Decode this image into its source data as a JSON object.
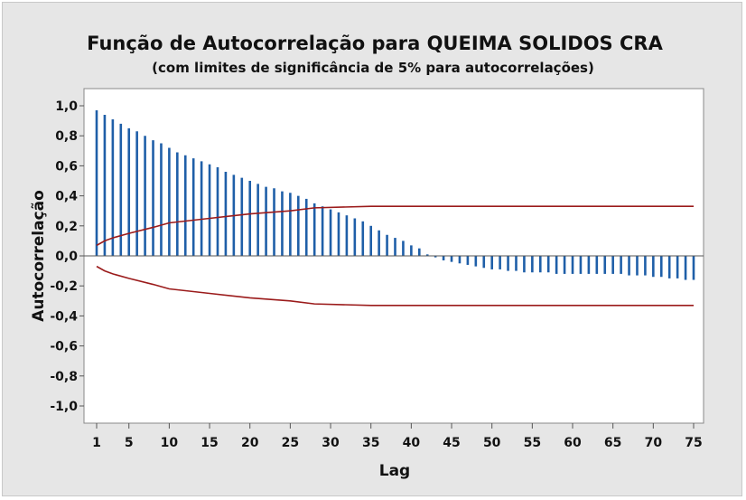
{
  "chart_data": {
    "type": "bar",
    "title": "Função de Autocorrelação para QUEIMA SOLIDOS CRA",
    "subtitle": "(com limites de significância de 5% para autocorrelações)",
    "xlabel": "Lag",
    "ylabel": "Autocorrelação",
    "xlim": [
      1,
      75
    ],
    "ylim": [
      -1.0,
      1.0
    ],
    "xticks": [
      1,
      5,
      10,
      15,
      20,
      25,
      30,
      35,
      40,
      45,
      50,
      55,
      60,
      65,
      70,
      75
    ],
    "xtick_labels": [
      "1",
      "5",
      "10",
      "15",
      "20",
      "25",
      "30",
      "35",
      "40",
      "45",
      "50",
      "55",
      "60",
      "65",
      "70",
      "75"
    ],
    "yticks": [
      1.0,
      0.8,
      0.6,
      0.4,
      0.2,
      0.0,
      -0.2,
      -0.4,
      -0.6,
      -0.8,
      -1.0
    ],
    "ytick_labels": [
      "1,0",
      "0,8",
      "0,6",
      "0,4",
      "0,2",
      "0,0",
      "-0,2",
      "-0,4",
      "-0,6",
      "-0,8",
      "-1,0"
    ],
    "grid": false,
    "colors": {
      "bars": "#1f5fa8",
      "limits": "#9b1b1b",
      "plot_bg": "#ffffff",
      "frame_bg": "#e6e6e6"
    },
    "series": [
      {
        "kind": "acf",
        "lags": [
          1,
          2,
          3,
          4,
          5,
          6,
          7,
          8,
          9,
          10,
          11,
          12,
          13,
          14,
          15,
          16,
          17,
          18,
          19,
          20,
          21,
          22,
          23,
          24,
          25,
          26,
          27,
          28,
          29,
          30,
          31,
          32,
          33,
          34,
          35,
          36,
          37,
          38,
          39,
          40,
          41,
          42,
          43,
          44,
          45,
          46,
          47,
          48,
          49,
          50,
          51,
          52,
          53,
          54,
          55,
          56,
          57,
          58,
          59,
          60,
          61,
          62,
          63,
          64,
          65,
          66,
          67,
          68,
          69,
          70,
          71,
          72,
          73,
          74,
          75
        ],
        "values": [
          0.97,
          0.94,
          0.91,
          0.88,
          0.85,
          0.83,
          0.8,
          0.77,
          0.75,
          0.72,
          0.69,
          0.67,
          0.65,
          0.63,
          0.61,
          0.59,
          0.56,
          0.54,
          0.52,
          0.5,
          0.48,
          0.46,
          0.45,
          0.43,
          0.42,
          0.4,
          0.38,
          0.35,
          0.33,
          0.31,
          0.29,
          0.27,
          0.25,
          0.23,
          0.2,
          0.17,
          0.14,
          0.12,
          0.1,
          0.07,
          0.05,
          0.01,
          -0.01,
          -0.03,
          -0.04,
          -0.05,
          -0.06,
          -0.07,
          -0.08,
          -0.09,
          -0.09,
          -0.1,
          -0.1,
          -0.11,
          -0.11,
          -0.11,
          -0.11,
          -0.12,
          -0.12,
          -0.12,
          -0.12,
          -0.12,
          -0.12,
          -0.12,
          -0.12,
          -0.12,
          -0.13,
          -0.13,
          -0.13,
          -0.14,
          -0.14,
          -0.15,
          -0.15,
          -0.16,
          -0.16
        ]
      },
      {
        "kind": "limit",
        "lags": [
          1,
          2,
          3,
          5,
          8,
          10,
          15,
          20,
          25,
          28,
          35,
          40,
          50,
          60,
          75
        ],
        "upper": [
          0.07,
          0.1,
          0.12,
          0.15,
          0.19,
          0.22,
          0.25,
          0.28,
          0.3,
          0.32,
          0.33,
          0.33,
          0.33,
          0.33,
          0.33
        ],
        "lower": [
          -0.07,
          -0.1,
          -0.12,
          -0.15,
          -0.19,
          -0.22,
          -0.25,
          -0.28,
          -0.3,
          -0.32,
          -0.33,
          -0.33,
          -0.33,
          -0.33,
          -0.33
        ]
      }
    ]
  }
}
